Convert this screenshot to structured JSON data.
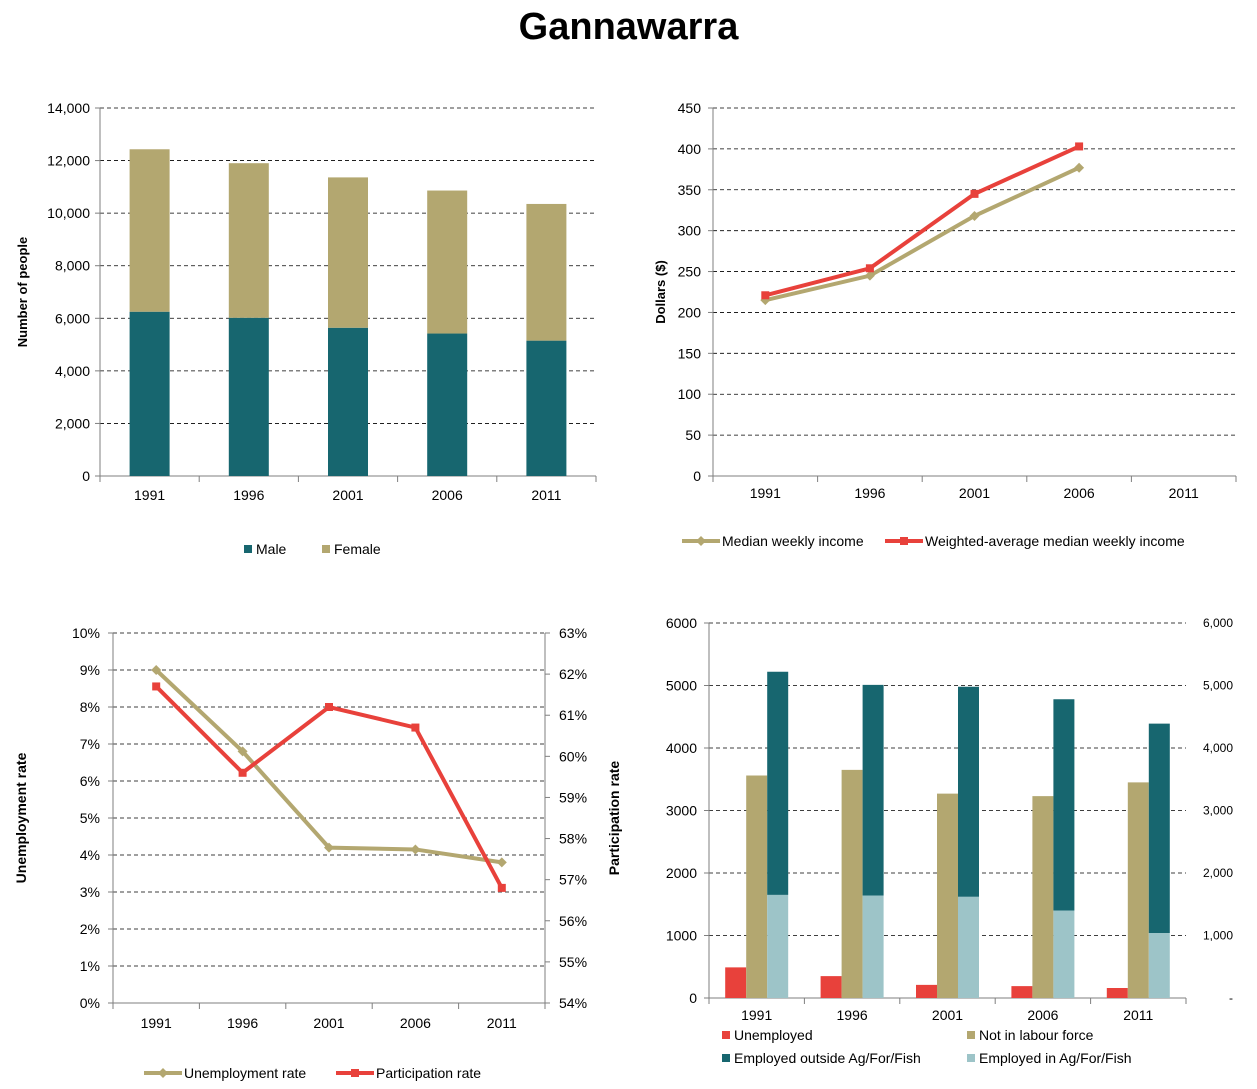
{
  "page": {
    "title": "Gannawarra"
  },
  "chart_data": [
    {
      "id": "population",
      "type": "bar",
      "stacked": true,
      "categories": [
        "1991",
        "1996",
        "2001",
        "2006",
        "2011"
      ],
      "series": [
        {
          "name": "Male",
          "values": [
            6250,
            6020,
            5640,
            5420,
            5150
          ],
          "color": "#17666F"
        },
        {
          "name": "Female",
          "values": [
            6180,
            5880,
            5720,
            5440,
            5200
          ],
          "color": "#B3A770"
        }
      ],
      "ylabel": "Number of people",
      "ylim": [
        0,
        14000
      ],
      "yticks": [
        "0",
        "2,000",
        "4,000",
        "6,000",
        "8,000",
        "10,000",
        "12,000",
        "14,000"
      ],
      "legend_position": "bottom",
      "grid": "dashed horizontal"
    },
    {
      "id": "income",
      "type": "line",
      "categories": [
        "1991",
        "1996",
        "2001",
        "2006",
        "2011"
      ],
      "series": [
        {
          "name": "Median weekly income",
          "values": [
            215,
            245,
            318,
            377,
            null
          ],
          "color": "#B3A770",
          "marker": "diamond"
        },
        {
          "name": "Weighted-average median weekly income",
          "values": [
            221,
            254,
            345,
            403,
            null
          ],
          "color": "#E8413B",
          "marker": "square"
        }
      ],
      "ylabel": "Dollars  ($)",
      "ylim": [
        0,
        450
      ],
      "yticks": [
        "0",
        "50",
        "100",
        "150",
        "200",
        "250",
        "300",
        "350",
        "400",
        "450"
      ],
      "legend_position": "bottom",
      "grid": "dashed horizontal"
    },
    {
      "id": "labour-rates",
      "type": "line",
      "categories": [
        "1991",
        "1996",
        "2001",
        "2006",
        "2011"
      ],
      "series": [
        {
          "name": "Unemployment rate",
          "axis": "left",
          "values": [
            9.0,
            6.8,
            4.2,
            4.15,
            3.8
          ],
          "color": "#B3A770",
          "marker": "diamond"
        },
        {
          "name": "Participation rate",
          "axis": "right",
          "values": [
            61.7,
            59.6,
            61.2,
            60.7,
            56.8
          ],
          "color": "#E8413B",
          "marker": "square"
        }
      ],
      "ylabel": "Unemployment rate",
      "y2label": "Participation rate",
      "ylim": [
        0,
        10
      ],
      "y2lim": [
        54,
        63
      ],
      "yticks": [
        "0%",
        "1%",
        "2%",
        "3%",
        "4%",
        "5%",
        "6%",
        "7%",
        "8%",
        "9%",
        "10%"
      ],
      "y2ticks": [
        "54%",
        "55%",
        "56%",
        "57%",
        "58%",
        "59%",
        "60%",
        "61%",
        "62%",
        "63%"
      ],
      "legend_position": "bottom",
      "grid": "dashed horizontal"
    },
    {
      "id": "labour-force",
      "type": "bar",
      "categories": [
        "1991",
        "1996",
        "2001",
        "2006",
        "2011"
      ],
      "series": [
        {
          "name": "Unemployed",
          "values": [
            490,
            350,
            210,
            190,
            160
          ],
          "color": "#E8413B"
        },
        {
          "name": "Not in labour force",
          "values": [
            3560,
            3650,
            3270,
            3230,
            3450
          ],
          "color": "#B3A770"
        },
        {
          "name": "Employed in Ag/For/Fish",
          "values": [
            1650,
            1640,
            1620,
            1400,
            1040
          ],
          "color": "#9DC4C8"
        },
        {
          "name": "Employed outside Ag/For/Fish",
          "values": [
            3570,
            3370,
            3360,
            3380,
            3350
          ],
          "color": "#17666F"
        }
      ],
      "stack_note": "Employed in Ag/For/Fish stacked under Employed outside Ag/For/Fish",
      "ylim": [
        0,
        6000
      ],
      "yticks": [
        "0",
        "1000",
        "2000",
        "3000",
        "4000",
        "5000",
        "6000"
      ],
      "y2ticks": [
        "-",
        "1,000",
        "2,000",
        "3,000",
        "4,000",
        "5,000",
        "6,000"
      ],
      "legend": [
        "Unemployed",
        "Not in labour force",
        "Employed outside Ag/For/Fish",
        "Employed in Ag/For/Fish"
      ],
      "legend_position": "bottom",
      "grid": "dashed horizontal"
    }
  ]
}
